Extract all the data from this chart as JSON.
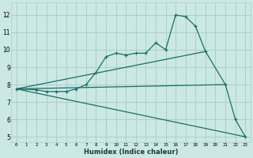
{
  "xlabel": "Humidex (Indice chaleur)",
  "bg_color": "#cce8e4",
  "grid_color": "#aacfcb",
  "line_color": "#1a6e64",
  "xlim": [
    -0.5,
    23.5
  ],
  "ylim": [
    4.7,
    12.7
  ],
  "yticks": [
    5,
    6,
    7,
    8,
    9,
    10,
    11,
    12
  ],
  "xticks": [
    0,
    1,
    2,
    3,
    4,
    5,
    6,
    7,
    8,
    9,
    10,
    11,
    12,
    13,
    14,
    15,
    16,
    17,
    18,
    19,
    20,
    21,
    22,
    23
  ],
  "line1_x": [
    0,
    2,
    3,
    4,
    5,
    6,
    7,
    8,
    9,
    10,
    11,
    12,
    13,
    14,
    15,
    16,
    17,
    18,
    19,
    21,
    22,
    23
  ],
  "line1_y": [
    7.75,
    7.7,
    7.6,
    7.6,
    7.6,
    7.75,
    8.0,
    8.7,
    9.6,
    9.8,
    9.7,
    9.8,
    9.8,
    10.4,
    10.0,
    12.0,
    11.9,
    11.35,
    9.9,
    8.0,
    6.0,
    5.0
  ],
  "line2_x": [
    0,
    23
  ],
  "line2_y": [
    7.75,
    5.0
  ],
  "line3_x": [
    0,
    19
  ],
  "line3_y": [
    7.75,
    9.9
  ],
  "line4_x": [
    0,
    21
  ],
  "line4_y": [
    7.75,
    8.0
  ]
}
